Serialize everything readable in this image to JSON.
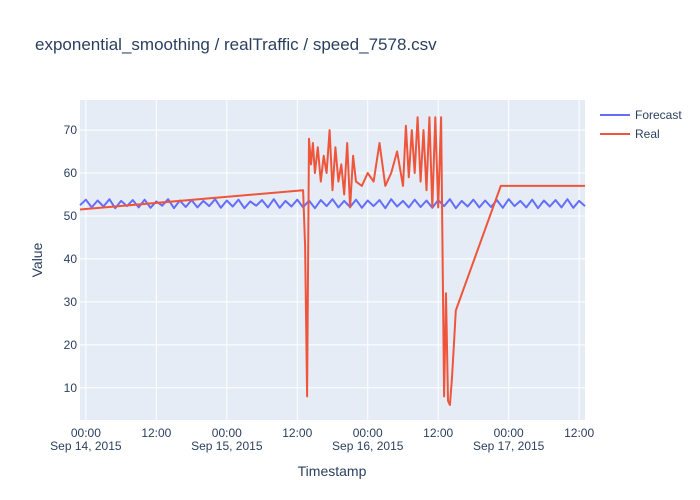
{
  "chart_data": {
    "type": "line",
    "title": "exponential_smoothing / realTraffic / speed_7578.csv",
    "xlabel": "Timestamp",
    "ylabel": "Value",
    "xlim": [
      "2015-09-13 23:00",
      "2015-09-17 13:00"
    ],
    "ylim": [
      2.5,
      77
    ],
    "x_ticks": [
      {
        "t": "2015-09-14 00:00",
        "label": "00:00",
        "sub": "Sep 14, 2015"
      },
      {
        "t": "2015-09-14 12:00",
        "label": "12:00",
        "sub": ""
      },
      {
        "t": "2015-09-15 00:00",
        "label": "00:00",
        "sub": "Sep 15, 2015"
      },
      {
        "t": "2015-09-15 12:00",
        "label": "12:00",
        "sub": ""
      },
      {
        "t": "2015-09-16 00:00",
        "label": "00:00",
        "sub": "Sep 16, 2015"
      },
      {
        "t": "2015-09-16 12:00",
        "label": "12:00",
        "sub": ""
      },
      {
        "t": "2015-09-17 00:00",
        "label": "00:00",
        "sub": "Sep 17, 2015"
      },
      {
        "t": "2015-09-17 12:00",
        "label": "12:00",
        "sub": ""
      }
    ],
    "y_ticks": [
      10,
      20,
      30,
      40,
      50,
      60,
      70
    ],
    "grid": true,
    "legend_position": "top-right",
    "series": [
      {
        "name": "Forecast",
        "color": "#636efa",
        "x": [
          "2015-09-13 23:00",
          "2015-09-14 00:00",
          "2015-09-14 01:00",
          "2015-09-14 02:00",
          "2015-09-14 03:00",
          "2015-09-14 04:00",
          "2015-09-14 05:00",
          "2015-09-14 06:00",
          "2015-09-14 07:00",
          "2015-09-14 08:00",
          "2015-09-14 09:00",
          "2015-09-14 10:00",
          "2015-09-14 11:00",
          "2015-09-14 12:00",
          "2015-09-14 13:00",
          "2015-09-14 14:00",
          "2015-09-14 15:00",
          "2015-09-14 16:00",
          "2015-09-14 17:00",
          "2015-09-14 18:00",
          "2015-09-14 19:00",
          "2015-09-14 20:00",
          "2015-09-14 21:00",
          "2015-09-14 22:00",
          "2015-09-14 23:00",
          "2015-09-15 00:00",
          "2015-09-15 01:00",
          "2015-09-15 02:00",
          "2015-09-15 03:00",
          "2015-09-15 04:00",
          "2015-09-15 05:00",
          "2015-09-15 06:00",
          "2015-09-15 07:00",
          "2015-09-15 08:00",
          "2015-09-15 09:00",
          "2015-09-15 10:00",
          "2015-09-15 11:00",
          "2015-09-15 12:00",
          "2015-09-15 13:00",
          "2015-09-15 14:00",
          "2015-09-15 15:00",
          "2015-09-15 16:00",
          "2015-09-15 17:00",
          "2015-09-15 18:00",
          "2015-09-15 19:00",
          "2015-09-15 20:00",
          "2015-09-15 21:00",
          "2015-09-15 22:00",
          "2015-09-15 23:00",
          "2015-09-16 00:00",
          "2015-09-16 01:00",
          "2015-09-16 02:00",
          "2015-09-16 03:00",
          "2015-09-16 04:00",
          "2015-09-16 05:00",
          "2015-09-16 06:00",
          "2015-09-16 07:00",
          "2015-09-16 08:00",
          "2015-09-16 09:00",
          "2015-09-16 10:00",
          "2015-09-16 11:00",
          "2015-09-16 12:00",
          "2015-09-16 13:00",
          "2015-09-16 14:00",
          "2015-09-16 15:00",
          "2015-09-16 16:00",
          "2015-09-16 17:00",
          "2015-09-16 18:00",
          "2015-09-16 19:00",
          "2015-09-16 20:00",
          "2015-09-16 21:00",
          "2015-09-16 22:00",
          "2015-09-16 23:00",
          "2015-09-17 00:00",
          "2015-09-17 01:00",
          "2015-09-17 02:00",
          "2015-09-17 03:00",
          "2015-09-17 04:00",
          "2015-09-17 05:00",
          "2015-09-17 06:00",
          "2015-09-17 07:00",
          "2015-09-17 08:00",
          "2015-09-17 09:00",
          "2015-09-17 10:00",
          "2015-09-17 11:00",
          "2015-09-17 12:00",
          "2015-09-17 13:00"
        ],
        "y": [
          52.5,
          53.8,
          52.0,
          53.6,
          52.2,
          53.9,
          51.8,
          53.5,
          52.3,
          53.7,
          52.0,
          53.8,
          51.9,
          53.4,
          52.4,
          53.9,
          51.8,
          53.6,
          52.1,
          53.7,
          52.0,
          53.5,
          52.3,
          53.9,
          51.9,
          53.6,
          52.2,
          53.8,
          51.8,
          53.4,
          52.4,
          53.7,
          52.0,
          53.9,
          51.9,
          53.5,
          52.2,
          53.8,
          52.0,
          53.6,
          51.8,
          53.7,
          52.3,
          53.9,
          52.0,
          53.5,
          52.1,
          53.8,
          51.9,
          53.6,
          52.3,
          53.7,
          51.8,
          53.9,
          52.2,
          53.5,
          52.0,
          53.8,
          52.1,
          53.6,
          51.9,
          53.7,
          52.3,
          53.9,
          51.8,
          53.5,
          52.2,
          53.8,
          52.0,
          53.6,
          52.1,
          53.7,
          51.9,
          53.9,
          52.3,
          53.5,
          52.0,
          53.8,
          51.8,
          53.6,
          52.2,
          53.7,
          52.0,
          53.9,
          51.9,
          53.5,
          52.3
        ]
      },
      {
        "name": "Real",
        "color": "#ef553b",
        "x": [
          "2015-09-13 23:00",
          "2015-09-15 13:00",
          "2015-09-15 13:20",
          "2015-09-15 13:40",
          "2015-09-15 14:00",
          "2015-09-15 14:20",
          "2015-09-15 14:40",
          "2015-09-15 15:00",
          "2015-09-15 15:30",
          "2015-09-15 16:00",
          "2015-09-15 16:30",
          "2015-09-15 17:00",
          "2015-09-15 17:30",
          "2015-09-15 18:00",
          "2015-09-15 18:30",
          "2015-09-15 19:00",
          "2015-09-15 19:30",
          "2015-09-15 20:00",
          "2015-09-15 20:30",
          "2015-09-15 21:00",
          "2015-09-15 21:30",
          "2015-09-15 22:00",
          "2015-09-15 23:00",
          "2015-09-16 00:00",
          "2015-09-16 01:00",
          "2015-09-16 02:00",
          "2015-09-16 03:00",
          "2015-09-16 04:00",
          "2015-09-16 05:00",
          "2015-09-16 06:00",
          "2015-09-16 06:30",
          "2015-09-16 07:00",
          "2015-09-16 07:30",
          "2015-09-16 08:00",
          "2015-09-16 08:30",
          "2015-09-16 09:00",
          "2015-09-16 09:30",
          "2015-09-16 10:00",
          "2015-09-16 10:30",
          "2015-09-16 11:00",
          "2015-09-16 11:30",
          "2015-09-16 12:00",
          "2015-09-16 12:30",
          "2015-09-16 13:00",
          "2015-09-16 13:20",
          "2015-09-16 13:40",
          "2015-09-16 14:00",
          "2015-09-16 14:20",
          "2015-09-16 14:40",
          "2015-09-16 15:00",
          "2015-09-16 22:40",
          "2015-09-17 13:00"
        ],
        "y": [
          51.5,
          56.0,
          43.0,
          8.0,
          68.0,
          62.0,
          67.0,
          60.0,
          66.0,
          58.0,
          64.0,
          60.0,
          70.0,
          56.0,
          66.0,
          58.0,
          62.0,
          55.0,
          67.0,
          52.0,
          64.0,
          58.0,
          57.0,
          60.0,
          58.0,
          67.0,
          57.0,
          60.0,
          65.0,
          57.0,
          71.0,
          59.0,
          70.0,
          60.0,
          73.0,
          58.0,
          70.0,
          56.0,
          73.0,
          52.0,
          73.0,
          52.0,
          73.0,
          8.0,
          32.0,
          7.0,
          6.0,
          12.0,
          20.0,
          28.0,
          57.0,
          57.0
        ]
      }
    ]
  }
}
